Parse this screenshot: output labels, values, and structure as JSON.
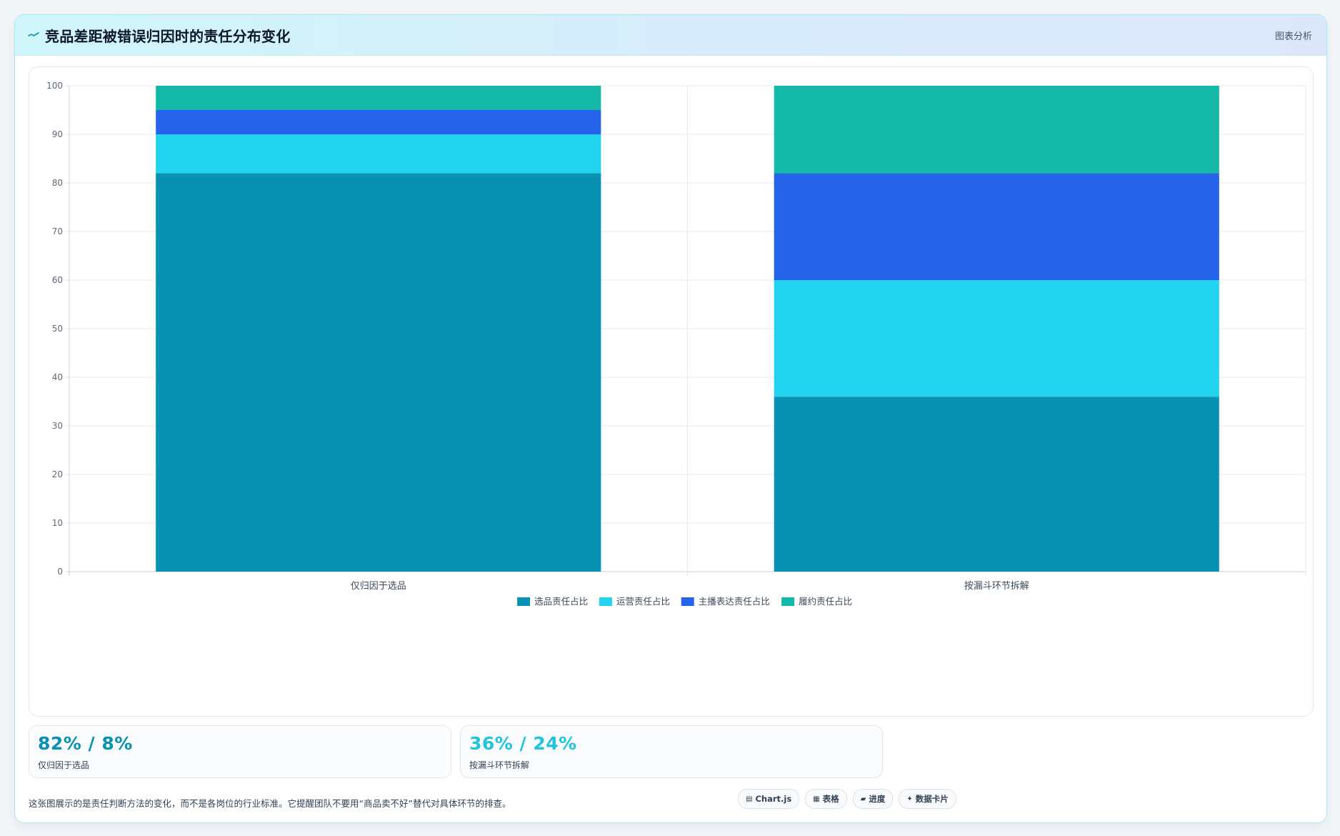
{
  "header": {
    "icon": "trend-line-icon",
    "title": "竞品差距被错误归因时的责任分布变化",
    "tag": "图表分析"
  },
  "chart_data": {
    "type": "bar",
    "stacked": true,
    "categories": [
      "仅归因于选品",
      "按漏斗环节拆解"
    ],
    "series": [
      {
        "name": "选品责任占比",
        "color": "#0891b2",
        "values": [
          82,
          36
        ]
      },
      {
        "name": "运营责任占比",
        "color": "#22d3ee",
        "values": [
          8,
          24
        ]
      },
      {
        "name": "主播表达责任占比",
        "color": "#2563eb",
        "values": [
          5,
          22
        ]
      },
      {
        "name": "履约责任占比",
        "color": "#14b8a6",
        "values": [
          5,
          18
        ]
      }
    ],
    "ylim": [
      0,
      100
    ],
    "yticks": [
      0,
      10,
      20,
      30,
      40,
      50,
      60,
      70,
      80,
      90,
      100
    ],
    "grid": true,
    "legend_position": "bottom"
  },
  "kpis": [
    {
      "value": "82% / 8%",
      "label": "仅归因于选品",
      "color": "#0891b2"
    },
    {
      "value": "36% / 24%",
      "label": "按漏斗环节拆解",
      "color": "#22c3e0"
    }
  ],
  "footnote": "这张图展示的是责任判断方法的变化，而不是各岗位的行业标准。它提醒团队不要用“商品卖不好”替代对具体环节的排查。",
  "pills": [
    {
      "icon": "chart-icon",
      "glyph": "▤",
      "label": "Chart.js"
    },
    {
      "icon": "table-icon",
      "glyph": "▦",
      "label": "表格"
    },
    {
      "icon": "progress-icon",
      "glyph": "▰",
      "label": "进度"
    },
    {
      "icon": "sparkle-icon",
      "glyph": "✦",
      "label": "数据卡片"
    }
  ]
}
